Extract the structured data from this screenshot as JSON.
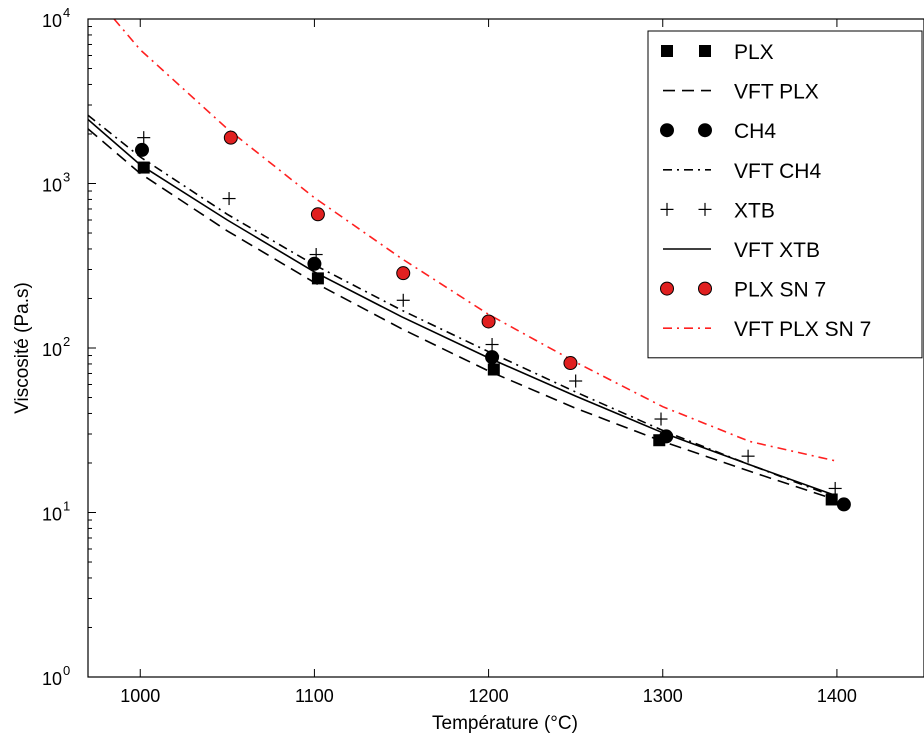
{
  "chart_data": {
    "type": "scatter",
    "xlabel": "Température (°C)",
    "ylabel": "Viscosité (Pa.s)",
    "xlim": [
      970,
      1450
    ],
    "ylim": [
      1,
      10000
    ],
    "yscale": "log",
    "grid": false,
    "legend_position": "top-right",
    "xticks": [
      1000,
      1100,
      1200,
      1300,
      1400
    ],
    "xtick_labels": [
      "1000",
      "1100",
      "1200",
      "1300",
      "1400"
    ],
    "yticks": [
      1,
      10,
      100,
      1000,
      10000
    ],
    "ytick_labels": [
      {
        "base": "10",
        "exp": "0"
      },
      {
        "base": "10",
        "exp": "1"
      },
      {
        "base": "10",
        "exp": "2"
      },
      {
        "base": "10",
        "exp": "3"
      },
      {
        "base": "10",
        "exp": "4"
      }
    ],
    "series": [
      {
        "name": "PLX",
        "kind": "points",
        "marker": "square",
        "color": "#000000",
        "x": [
          1002,
          1102,
          1203,
          1298,
          1397
        ],
        "y": [
          1250,
          265,
          74,
          27.5,
          12
        ]
      },
      {
        "name": "VFT PLX",
        "kind": "line",
        "dash": "dashed",
        "color": "#000000",
        "x": [
          970,
          1000,
          1050,
          1100,
          1150,
          1200,
          1250,
          1300,
          1350,
          1400
        ],
        "y": [
          2150,
          1150,
          515,
          250,
          131,
          72.5,
          43,
          27,
          17.8,
          11.9
        ]
      },
      {
        "name": "CH4",
        "kind": "points",
        "marker": "circle",
        "color": "#000000",
        "x": [
          1001,
          1100,
          1202,
          1302,
          1404
        ],
        "y": [
          1600,
          325,
          88,
          29,
          11.2
        ]
      },
      {
        "name": "VFT CH4",
        "kind": "line",
        "dash": "dashdot",
        "color": "#000000",
        "x": [
          970,
          1000,
          1050,
          1100,
          1150,
          1200,
          1250,
          1300,
          1350,
          1400
        ],
        "y": [
          2600,
          1450,
          650,
          320,
          170,
          95,
          54,
          31.5,
          19.5,
          12.3
        ]
      },
      {
        "name": "XTB",
        "kind": "points",
        "marker": "plus",
        "color": "#000000",
        "x": [
          1002,
          1051,
          1101,
          1151,
          1202,
          1250,
          1299,
          1349,
          1399
        ],
        "y": [
          1900,
          810,
          370,
          195,
          105,
          63,
          37,
          22,
          14
        ]
      },
      {
        "name": "VFT XTB",
        "kind": "line",
        "dash": "solid",
        "color": "#000000",
        "x": [
          970,
          1000,
          1050,
          1100,
          1150,
          1200,
          1250,
          1300,
          1350,
          1400
        ],
        "y": [
          2450,
          1300,
          600,
          290,
          155,
          87,
          51,
          30.5,
          19.5,
          12.6
        ]
      },
      {
        "name": "PLX SN 7",
        "kind": "points",
        "marker": "circle",
        "color": "#e02020",
        "x": [
          1052,
          1102,
          1151,
          1200,
          1247
        ],
        "y": [
          1900,
          650,
          285,
          145,
          81
        ]
      },
      {
        "name": "VFT PLX SN 7",
        "kind": "line",
        "dash": "dashdot",
        "color": "#ff2020",
        "x": [
          985,
          1000,
          1050,
          1100,
          1150,
          1200,
          1250,
          1300,
          1350,
          1400
        ],
        "y": [
          10000,
          6500,
          2150,
          820,
          350,
          160,
          82,
          44,
          27,
          20.5
        ]
      }
    ]
  }
}
